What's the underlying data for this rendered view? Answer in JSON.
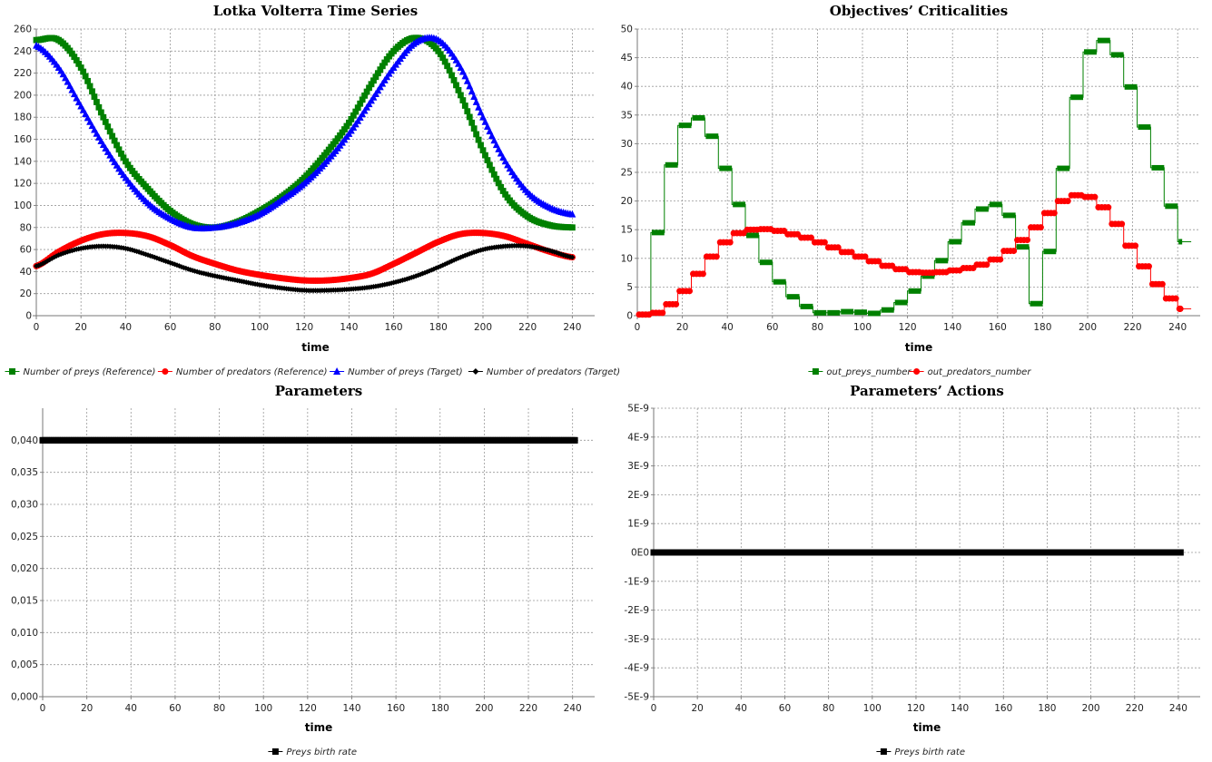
{
  "chart_data": [
    {
      "type": "line",
      "title": "Lotka Volterra Time Series",
      "xlabel": "time",
      "ylabel": "",
      "xlim": [
        0,
        250
      ],
      "ylim": [
        0,
        260
      ],
      "xticks": [
        "0",
        "20",
        "40",
        "60",
        "80",
        "100",
        "120",
        "140",
        "160",
        "180",
        "200",
        "220",
        "240"
      ],
      "yticks": [
        "0",
        "20",
        "40",
        "60",
        "80",
        "100",
        "120",
        "140",
        "160",
        "180",
        "200",
        "220",
        "240",
        "260"
      ],
      "grid": true,
      "legend_position": "bottom",
      "x": [
        0,
        10,
        20,
        30,
        40,
        50,
        60,
        70,
        80,
        90,
        100,
        110,
        120,
        130,
        140,
        150,
        160,
        170,
        180,
        190,
        200,
        210,
        220,
        230,
        240
      ],
      "series": [
        {
          "name": "Number of preys (Reference)",
          "color": "#008000",
          "marker": "square",
          "values": [
            250,
            250,
            225,
            180,
            140,
            115,
            95,
            83,
            80,
            85,
            95,
            108,
            125,
            148,
            175,
            210,
            240,
            252,
            240,
            200,
            150,
            110,
            90,
            82,
            80
          ]
        },
        {
          "name": "Number of predators (Reference)",
          "color": "#ff0000",
          "marker": "circle",
          "values": [
            45,
            58,
            68,
            74,
            75,
            72,
            64,
            54,
            47,
            41,
            37,
            34,
            32,
            32,
            34,
            38,
            47,
            57,
            67,
            74,
            75,
            72,
            65,
            58,
            53
          ]
        },
        {
          "name": "Number of preys (Target)",
          "color": "#0000ff",
          "marker": "triangle",
          "values": [
            245,
            225,
            190,
            155,
            125,
            102,
            88,
            80,
            80,
            84,
            92,
            105,
            120,
            140,
            165,
            195,
            225,
            248,
            250,
            225,
            180,
            140,
            112,
            98,
            92
          ]
        },
        {
          "name": "Number of predators (Target)",
          "color": "#000000",
          "marker": "diamond",
          "values": [
            45,
            55,
            61,
            63,
            61,
            55,
            48,
            41,
            36,
            32,
            28,
            25,
            23,
            23,
            24,
            26,
            30,
            36,
            44,
            53,
            60,
            63,
            63,
            59,
            53
          ]
        }
      ]
    },
    {
      "type": "line",
      "title": "Objectives’ Criticalities",
      "xlabel": "time",
      "ylabel": "",
      "xlim": [
        0,
        250
      ],
      "ylim": [
        0,
        50
      ],
      "xticks": [
        "0",
        "20",
        "40",
        "60",
        "80",
        "100",
        "120",
        "140",
        "160",
        "180",
        "200",
        "220",
        "240"
      ],
      "yticks": [
        "0",
        "5",
        "10",
        "15",
        "20",
        "25",
        "30",
        "35",
        "40",
        "45",
        "50"
      ],
      "grid": true,
      "legend_position": "bottom",
      "step_width": 6,
      "series": [
        {
          "name": "out_preys_number",
          "color": "#008000",
          "marker": "square",
          "x": [
            0,
            6,
            12,
            18,
            24,
            30,
            36,
            42,
            48,
            54,
            60,
            66,
            72,
            78,
            84,
            90,
            96,
            102,
            108,
            114,
            120,
            126,
            132,
            138,
            144,
            150,
            156,
            162,
            168,
            174,
            180,
            186,
            192,
            198,
            204,
            210,
            216,
            222,
            228,
            234,
            240
          ],
          "values": [
            0.2,
            14.5,
            26.3,
            33.2,
            34.5,
            31.3,
            25.7,
            19.4,
            14,
            9.3,
            5.9,
            3.3,
            1.6,
            0.5,
            0.5,
            0.7,
            0.6,
            0.4,
            1,
            2.3,
            4.3,
            6.9,
            9.6,
            12.9,
            16.2,
            18.6,
            19.4,
            17.5,
            12,
            2.1,
            11.2,
            25.7,
            38.1,
            46,
            48,
            45.5,
            39.9,
            32.9,
            25.8,
            19.1,
            12.9
          ]
        },
        {
          "name": "out_predators_number",
          "color": "#ff0000",
          "marker": "circle",
          "x": [
            0,
            6,
            12,
            18,
            24,
            30,
            36,
            42,
            48,
            54,
            60,
            66,
            72,
            78,
            84,
            90,
            96,
            102,
            108,
            114,
            120,
            126,
            132,
            138,
            144,
            150,
            156,
            162,
            168,
            174,
            180,
            186,
            192,
            198,
            204,
            210,
            216,
            222,
            228,
            234,
            240
          ],
          "values": [
            0.2,
            0.5,
            2,
            4.3,
            7.3,
            10.3,
            12.8,
            14.4,
            15,
            15.1,
            14.8,
            14.2,
            13.6,
            12.8,
            11.9,
            11.1,
            10.3,
            9.5,
            8.7,
            8.1,
            7.6,
            7.5,
            7.6,
            7.9,
            8.3,
            8.9,
            9.8,
            11.3,
            13.2,
            15.4,
            17.9,
            20,
            21,
            20.7,
            18.9,
            16,
            12.2,
            8.6,
            5.5,
            3,
            1.2
          ]
        }
      ]
    },
    {
      "type": "line",
      "title": "Parameters",
      "xlabel": "time",
      "ylabel": "",
      "xlim": [
        0,
        250
      ],
      "ylim": [
        0,
        0.045
      ],
      "xticks": [
        "0",
        "20",
        "40",
        "60",
        "80",
        "100",
        "120",
        "140",
        "160",
        "180",
        "200",
        "220",
        "240"
      ],
      "yticks": [
        "0,000",
        "0,005",
        "0,010",
        "0,015",
        "0,020",
        "0,025",
        "0,030",
        "0,035",
        "0,040"
      ],
      "grid": true,
      "legend_position": "bottom",
      "series": [
        {
          "name": "Preys birth rate",
          "color": "#000000",
          "marker": "square",
          "x": [
            0,
            241
          ],
          "values": [
            0.04,
            0.04
          ]
        }
      ]
    },
    {
      "type": "line",
      "title": "Parameters’ Actions",
      "xlabel": "time",
      "ylabel": "",
      "xlim": [
        0,
        250
      ],
      "ylim": [
        -5e-09,
        5e-09
      ],
      "xticks": [
        "0",
        "20",
        "40",
        "60",
        "80",
        "100",
        "120",
        "140",
        "160",
        "180",
        "200",
        "220",
        "240"
      ],
      "yticks": [
        "-5E-9",
        "-4E-9",
        "-3E-9",
        "-2E-9",
        "-1E-9",
        "0E0",
        "1E-9",
        "2E-9",
        "3E-9",
        "4E-9",
        "5E-9"
      ],
      "grid": true,
      "legend_position": "bottom",
      "series": [
        {
          "name": "Preys birth rate",
          "color": "#000000",
          "marker": "square",
          "x": [
            0,
            241
          ],
          "values": [
            0,
            0
          ]
        }
      ]
    }
  ]
}
